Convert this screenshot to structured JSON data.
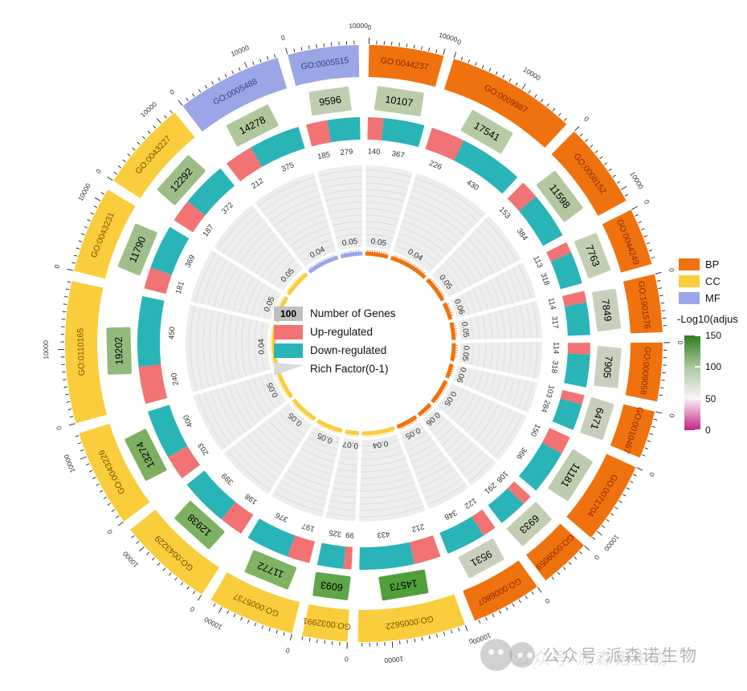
{
  "legend_center": {
    "genes_value": "100",
    "genes_label": "Number of Genes",
    "up_label": "Up-regulated",
    "down_label": "Down-regulated",
    "rich_label": "Rich Factor(0-1)"
  },
  "legend_right": {
    "categories": [
      {
        "label": "BP",
        "color": "#F0720E"
      },
      {
        "label": "CC",
        "color": "#F9CD3C"
      },
      {
        "label": "MF",
        "color": "#9AA6E5"
      }
    ],
    "scale_title": "-Log10(adjus",
    "scale_ticks": [
      "150",
      "100",
      "50",
      "0"
    ],
    "scale_colors": [
      "#2E7D1E",
      "#A9C79B",
      "#FBF4F8",
      "#C02387"
    ]
  },
  "watermark": {
    "text": "公众号·派森诺生物"
  },
  "chart_data": {
    "type": "circular_go_enrichment",
    "title": "",
    "axis": {
      "minor_tick_interval": 1000,
      "zero_label": "0",
      "major_label": "10000",
      "major_value": 10000
    },
    "rich_factor_range": [
      0,
      1
    ],
    "colors": {
      "BP": "#F0720E",
      "CC": "#F9CD3C",
      "MF": "#9AA6E5",
      "up": "#F17373",
      "down": "#29B4B8",
      "go_text": {
        "BP": "#8B2703",
        "CC": "#7A5200",
        "MF": "#3A4180"
      },
      "donut": "#EDEDEE",
      "gridline": "#D9D9D9",
      "gridline_alt": "#C7D6E4"
    },
    "sectors": [
      {
        "go_id": "GO:0044237",
        "category": "BP",
        "genes": 10107,
        "up": 140,
        "down": 367,
        "rich_factor": "0.05",
        "box_color": "#BACCA8"
      },
      {
        "go_id": "GO:0009987",
        "category": "BP",
        "genes": 17541,
        "up": 226,
        "down": 430,
        "rich_factor": "0.04",
        "box_color": "#B6CBA4"
      },
      {
        "go_id": "GO:0008152",
        "category": "BP",
        "genes": 11598,
        "up": 153,
        "down": 384,
        "rich_factor": "0.05",
        "box_color": "#B2C7A0"
      },
      {
        "go_id": "GO:0044249",
        "category": "BP",
        "genes": 7763,
        "up": 113,
        "down": 318,
        "rich_factor": "0.06",
        "box_color": "#C3CFB4"
      },
      {
        "go_id": "GO:1901576",
        "category": "BP",
        "genes": 7849,
        "up": 114,
        "down": 317,
        "rich_factor": "0.05",
        "box_color": "#C7D0BB"
      },
      {
        "go_id": "GO:0009058",
        "category": "BP",
        "genes": 7905,
        "up": 114,
        "down": 318,
        "rich_factor": "0.05",
        "box_color": "#C9D1BE"
      },
      {
        "go_id": "GO:0010467",
        "category": "BP",
        "genes": 6471,
        "up": 103,
        "down": 284,
        "rich_factor": "0.06",
        "box_color": "#C6CFB9"
      },
      {
        "go_id": "GO:0071704",
        "category": "BP",
        "genes": 11181,
        "up": 150,
        "down": 366,
        "rich_factor": "0.05",
        "box_color": "#BCCCAC"
      },
      {
        "go_id": "GO:0009059",
        "category": "BP",
        "genes": 6933,
        "up": 108,
        "down": 291,
        "rich_factor": "0.06",
        "box_color": "#C2CEB2"
      },
      {
        "go_id": "GO:0006807",
        "category": "BP",
        "genes": 9531,
        "up": 122,
        "down": 348,
        "rich_factor": "0.05",
        "box_color": "#C8D0BD"
      },
      {
        "go_id": "GO:0005622",
        "category": "CC",
        "genes": 14573,
        "up": 212,
        "down": 433,
        "rich_factor": "0.04",
        "box_color": "#519F3B"
      },
      {
        "go_id": "GO:0032991",
        "category": "CC",
        "genes": 6093,
        "up": 99,
        "down": 325,
        "rich_factor": "0.07",
        "box_color": "#5EA647"
      },
      {
        "go_id": "GO:0005737",
        "category": "CC",
        "genes": 11772,
        "up": 197,
        "down": 376,
        "rich_factor": "0.05",
        "box_color": "#80B264"
      },
      {
        "go_id": "GO:0043229",
        "category": "CC",
        "genes": 12938,
        "up": 198,
        "down": 399,
        "rich_factor": "0.05",
        "box_color": "#7DB061"
      },
      {
        "go_id": "GO:0043226",
        "category": "CC",
        "genes": 13274,
        "up": 203,
        "down": 400,
        "rich_factor": "0.05",
        "box_color": "#7CAF60"
      },
      {
        "go_id": "GO:0110165",
        "category": "CC",
        "genes": 19202,
        "up": 240,
        "down": 450,
        "rich_factor": "0.04",
        "box_color": "#92B87B"
      },
      {
        "go_id": "GO:0043231",
        "category": "CC",
        "genes": 11790,
        "up": 181,
        "down": 369,
        "rich_factor": "0.05",
        "box_color": "#9EBF8B"
      },
      {
        "go_id": "GO:0043227",
        "category": "CC",
        "genes": 12292,
        "up": 187,
        "down": 372,
        "rich_factor": "0.05",
        "box_color": "#9CBD88"
      },
      {
        "go_id": "GO:0005488",
        "category": "MF",
        "genes": 14278,
        "up": 212,
        "down": 375,
        "rich_factor": "0.04",
        "box_color": "#AFC79A"
      },
      {
        "go_id": "GO:0005515",
        "category": "MF",
        "genes": 9596,
        "up": 185,
        "down": 279,
        "rich_factor": "0.05",
        "box_color": "#C1CDB1"
      }
    ]
  }
}
